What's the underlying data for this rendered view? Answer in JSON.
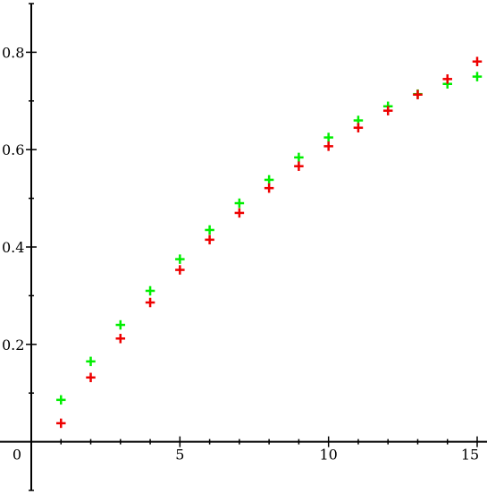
{
  "chart_data": {
    "type": "scatter",
    "title": "",
    "xlabel": "",
    "ylabel": "",
    "xlim": [
      0,
      15
    ],
    "ylim": [
      -0.1,
      0.9
    ],
    "grid": false,
    "legend": "none",
    "x_ticks": [
      {
        "value": 0,
        "label": "0"
      },
      {
        "value": 5,
        "label": "5"
      },
      {
        "value": 10,
        "label": "10"
      },
      {
        "value": 15,
        "label": "15"
      }
    ],
    "y_ticks": [
      {
        "value": 0.2,
        "label": "0.2"
      },
      {
        "value": 0.4,
        "label": "0.4"
      },
      {
        "value": 0.6,
        "label": "0.6"
      },
      {
        "value": 0.8,
        "label": "0.8"
      }
    ],
    "x_minor_step": 1,
    "y_minor_step": 0.1,
    "series": [
      {
        "color": "#00ee00",
        "marker": "cross",
        "points": [
          [
            1,
            0.086
          ],
          [
            2,
            0.165
          ],
          [
            3,
            0.24
          ],
          [
            4,
            0.31
          ],
          [
            5,
            0.375
          ],
          [
            6,
            0.435
          ],
          [
            7,
            0.49
          ],
          [
            8,
            0.538
          ],
          [
            9,
            0.584
          ],
          [
            10,
            0.625
          ],
          [
            11,
            0.66
          ],
          [
            12,
            0.689
          ],
          [
            13,
            0.714
          ],
          [
            14,
            0.735
          ],
          [
            15,
            0.75
          ]
        ]
      },
      {
        "color": "#ee0000",
        "marker": "cross",
        "points": [
          [
            1,
            0.038
          ],
          [
            2,
            0.132
          ],
          [
            3,
            0.212
          ],
          [
            4,
            0.286
          ],
          [
            5,
            0.353
          ],
          [
            6,
            0.415
          ],
          [
            7,
            0.47
          ],
          [
            8,
            0.521
          ],
          [
            9,
            0.566
          ],
          [
            10,
            0.607
          ],
          [
            11,
            0.645
          ],
          [
            12,
            0.68
          ],
          [
            13,
            0.713
          ],
          [
            14,
            0.745
          ],
          [
            15,
            0.781
          ]
        ]
      }
    ]
  }
}
